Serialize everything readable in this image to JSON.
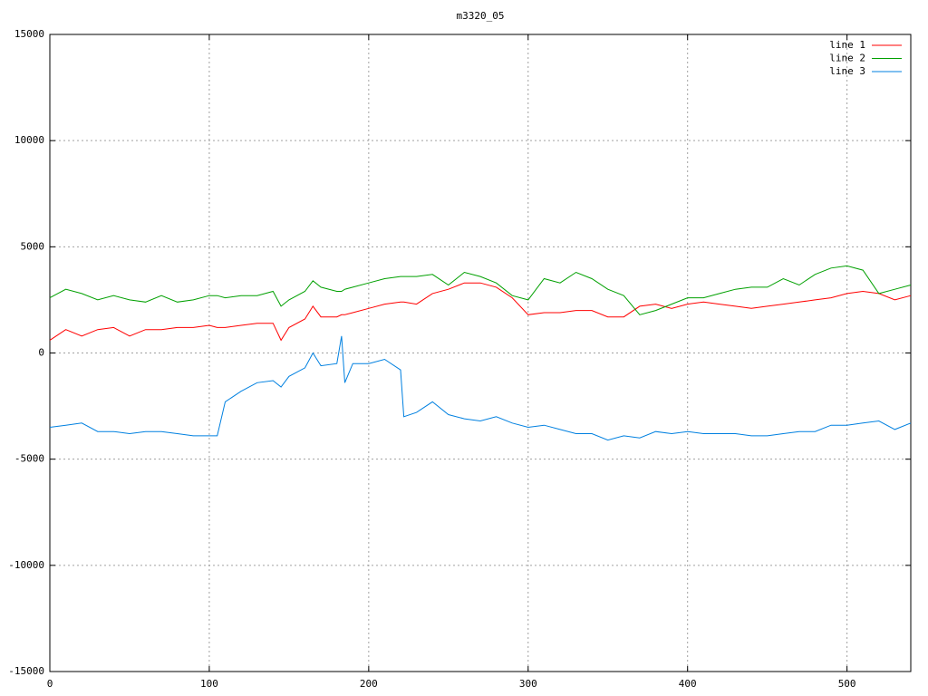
{
  "chart_data": {
    "type": "line",
    "title": "m3320_05",
    "x": [
      0,
      10,
      20,
      30,
      40,
      50,
      60,
      70,
      80,
      90,
      100,
      105,
      110,
      120,
      130,
      140,
      145,
      150,
      160,
      165,
      170,
      180,
      183,
      185,
      190,
      200,
      210,
      220,
      222,
      230,
      240,
      250,
      260,
      270,
      280,
      290,
      300,
      310,
      320,
      330,
      340,
      350,
      360,
      370,
      380,
      390,
      400,
      410,
      420,
      430,
      440,
      450,
      460,
      470,
      480,
      490,
      500,
      510,
      520,
      530,
      540
    ],
    "series": [
      {
        "name": "line 1",
        "color": "#ff0000",
        "values": [
          600,
          1100,
          800,
          1100,
          1200,
          800,
          1100,
          1100,
          1200,
          1200,
          1300,
          1200,
          1200,
          1300,
          1400,
          1400,
          600,
          1200,
          1600,
          2200,
          1700,
          1700,
          1800,
          1800,
          1900,
          2100,
          2300,
          2400,
          2400,
          2300,
          2800,
          3000,
          3300,
          3300,
          3100,
          2600,
          1800,
          1900,
          1900,
          2000,
          2000,
          1700,
          1700,
          2200,
          2300,
          2100,
          2300,
          2400,
          2300,
          2200,
          2100,
          2200,
          2300,
          2400,
          2500,
          2600,
          2800,
          2900,
          2800,
          2500,
          2700
        ]
      },
      {
        "name": "line 2",
        "color": "#00a000",
        "values": [
          2600,
          3000,
          2800,
          2500,
          2700,
          2500,
          2400,
          2700,
          2400,
          2500,
          2700,
          2700,
          2600,
          2700,
          2700,
          2900,
          2200,
          2500,
          2900,
          3400,
          3100,
          2900,
          2900,
          3000,
          3100,
          3300,
          3500,
          3600,
          3600,
          3600,
          3700,
          3200,
          3800,
          3600,
          3300,
          2700,
          2500,
          3500,
          3300,
          3800,
          3500,
          3000,
          2700,
          1800,
          2000,
          2300,
          2600,
          2600,
          2800,
          3000,
          3100,
          3100,
          3500,
          3200,
          3700,
          4000,
          4100,
          3900,
          2800,
          3000,
          3200
        ]
      },
      {
        "name": "line 3",
        "color": "#0080e0",
        "values": [
          -3500,
          -3400,
          -3300,
          -3700,
          -3700,
          -3800,
          -3700,
          -3700,
          -3800,
          -3900,
          -3900,
          -3900,
          -2300,
          -1800,
          -1400,
          -1300,
          -1600,
          -1100,
          -700,
          0,
          -600,
          -500,
          800,
          -1400,
          -500,
          -500,
          -300,
          -800,
          -3000,
          -2800,
          -2300,
          -2900,
          -3100,
          -3200,
          -3000,
          -3300,
          -3500,
          -3400,
          -3600,
          -3800,
          -3800,
          -4100,
          -3900,
          -4000,
          -3700,
          -3800,
          -3700,
          -3800,
          -3800,
          -3800,
          -3900,
          -3900,
          -3800,
          -3700,
          -3700,
          -3400,
          -3400,
          -3300,
          -3200,
          -3600,
          -3300
        ]
      }
    ],
    "xlim": [
      0,
      540
    ],
    "xticks": [
      0,
      100,
      200,
      300,
      400,
      500
    ],
    "ylim": [
      -15000,
      15000
    ],
    "yticks": [
      -15000,
      -10000,
      -5000,
      0,
      5000,
      10000,
      15000
    ],
    "grid": true,
    "legend": "top-right"
  }
}
